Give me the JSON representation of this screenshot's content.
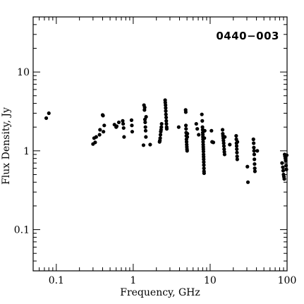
{
  "chart_data": {
    "type": "scatter",
    "title": "",
    "annotation": "0440−003",
    "xlabel": "Frequency, GHz",
    "ylabel": "Flux Density, Jy",
    "xscale": "log",
    "yscale": "log",
    "xlim": [
      0.05,
      100
    ],
    "ylim": [
      0.03,
      50
    ],
    "grid": false,
    "legend": "none",
    "point_color": "#000000",
    "x_ticks": [
      {
        "value": 0.1,
        "label": "0.1"
      },
      {
        "value": 1,
        "label": "1"
      },
      {
        "value": 10,
        "label": "10"
      },
      {
        "value": 100,
        "label": "100"
      }
    ],
    "y_ticks": [
      {
        "value": 0.1,
        "label": "0.1"
      },
      {
        "value": 1,
        "label": "1"
      },
      {
        "value": 10,
        "label": "10"
      }
    ],
    "points": [
      [
        0.074,
        2.6
      ],
      [
        0.08,
        3.0
      ],
      [
        0.3,
        1.22
      ],
      [
        0.31,
        1.45
      ],
      [
        0.32,
        1.28
      ],
      [
        0.33,
        1.5
      ],
      [
        0.365,
        1.6
      ],
      [
        0.37,
        1.85
      ],
      [
        0.4,
        2.85
      ],
      [
        0.405,
        2.8
      ],
      [
        0.41,
        1.75
      ],
      [
        0.42,
        2.1
      ],
      [
        0.57,
        2.15
      ],
      [
        0.6,
        2.0
      ],
      [
        0.61,
        2.05
      ],
      [
        0.65,
        2.3
      ],
      [
        0.73,
        2.4
      ],
      [
        0.74,
        2.2
      ],
      [
        0.75,
        1.95
      ],
      [
        0.76,
        1.5
      ],
      [
        0.95,
        2.45
      ],
      [
        0.96,
        2.1
      ],
      [
        0.97,
        1.75
      ],
      [
        1.36,
        1.18
      ],
      [
        1.38,
        3.8
      ],
      [
        1.4,
        3.3
      ],
      [
        1.41,
        3.55
      ],
      [
        1.42,
        2.5
      ],
      [
        1.43,
        2.3
      ],
      [
        1.44,
        2.0
      ],
      [
        1.45,
        1.8
      ],
      [
        1.46,
        1.5
      ],
      [
        1.47,
        2.7
      ],
      [
        1.66,
        1.2
      ],
      [
        2.2,
        1.3
      ],
      [
        2.22,
        1.35
      ],
      [
        2.24,
        1.45
      ],
      [
        2.26,
        1.6
      ],
      [
        2.28,
        1.75
      ],
      [
        2.3,
        1.85
      ],
      [
        2.32,
        2.0
      ],
      [
        2.34,
        2.2
      ],
      [
        2.6,
        4.4
      ],
      [
        2.61,
        4.1
      ],
      [
        2.63,
        3.8
      ],
      [
        2.64,
        3.5
      ],
      [
        2.65,
        3.2
      ],
      [
        2.66,
        2.9
      ],
      [
        2.68,
        2.65
      ],
      [
        2.69,
        2.4
      ],
      [
        2.7,
        2.2
      ],
      [
        2.72,
        2.0
      ],
      [
        2.73,
        1.9
      ],
      [
        3.9,
        2.0
      ],
      [
        4.8,
        3.3
      ],
      [
        4.82,
        3.1
      ],
      [
        4.84,
        2.1
      ],
      [
        4.86,
        1.9
      ],
      [
        4.88,
        1.7
      ],
      [
        4.9,
        1.55
      ],
      [
        4.92,
        1.4
      ],
      [
        4.94,
        1.3
      ],
      [
        4.96,
        1.2
      ],
      [
        4.98,
        1.12
      ],
      [
        5.0,
        1.05
      ],
      [
        5.02,
        1.0
      ],
      [
        5.04,
        1.5
      ],
      [
        5.06,
        1.65
      ],
      [
        6.6,
        2.2
      ],
      [
        6.8,
        1.9
      ],
      [
        7.1,
        1.6
      ],
      [
        7.8,
        2.9
      ],
      [
        7.9,
        2.4
      ],
      [
        7.95,
        2.0
      ],
      [
        8.0,
        1.85
      ],
      [
        8.02,
        1.7
      ],
      [
        8.04,
        1.6
      ],
      [
        8.06,
        1.5
      ],
      [
        8.08,
        1.4
      ],
      [
        8.1,
        1.3
      ],
      [
        8.12,
        1.2
      ],
      [
        8.14,
        1.12
      ],
      [
        8.16,
        1.05
      ],
      [
        8.18,
        0.98
      ],
      [
        8.2,
        0.9
      ],
      [
        8.22,
        0.84
      ],
      [
        8.24,
        0.78
      ],
      [
        8.26,
        0.72
      ],
      [
        8.28,
        0.66
      ],
      [
        8.3,
        0.6
      ],
      [
        8.32,
        0.55
      ],
      [
        8.34,
        0.52
      ],
      [
        8.4,
        1.45
      ],
      [
        8.5,
        1.8
      ],
      [
        10.4,
        1.8
      ],
      [
        10.6,
        1.3
      ],
      [
        11.0,
        1.28
      ],
      [
        14.5,
        1.85
      ],
      [
        14.6,
        1.65
      ],
      [
        14.7,
        1.55
      ],
      [
        14.8,
        1.45
      ],
      [
        14.9,
        1.35
      ],
      [
        15.0,
        1.25
      ],
      [
        15.1,
        1.15
      ],
      [
        15.2,
        1.05
      ],
      [
        15.3,
        0.97
      ],
      [
        15.4,
        0.9
      ],
      [
        15.5,
        1.5
      ],
      [
        18.0,
        1.2
      ],
      [
        21.8,
        1.55
      ],
      [
        21.9,
        1.4
      ],
      [
        22.0,
        1.25
      ],
      [
        22.1,
        1.15
      ],
      [
        22.2,
        1.05
      ],
      [
        22.3,
        0.95
      ],
      [
        22.4,
        0.85
      ],
      [
        22.5,
        0.78
      ],
      [
        22.6,
        1.3
      ],
      [
        30.5,
        0.63
      ],
      [
        31.0,
        0.4
      ],
      [
        36.5,
        1.4
      ],
      [
        36.8,
        1.25
      ],
      [
        37.0,
        1.1
      ],
      [
        37.2,
        1.0
      ],
      [
        37.4,
        0.9
      ],
      [
        37.6,
        0.78
      ],
      [
        37.8,
        0.68
      ],
      [
        38.0,
        0.6
      ],
      [
        38.2,
        0.55
      ],
      [
        41.0,
        1.0
      ],
      [
        86.0,
        0.7
      ],
      [
        88.0,
        0.62
      ],
      [
        89.0,
        0.56
      ],
      [
        90.0,
        0.5
      ],
      [
        91.0,
        0.47
      ],
      [
        92.0,
        0.44
      ],
      [
        93.0,
        0.9
      ],
      [
        94.0,
        0.85
      ],
      [
        95.0,
        0.8
      ],
      [
        96.0,
        0.75
      ],
      [
        97.0,
        0.65
      ],
      [
        98.0,
        0.58
      ],
      [
        99.0,
        0.88
      ]
    ]
  }
}
